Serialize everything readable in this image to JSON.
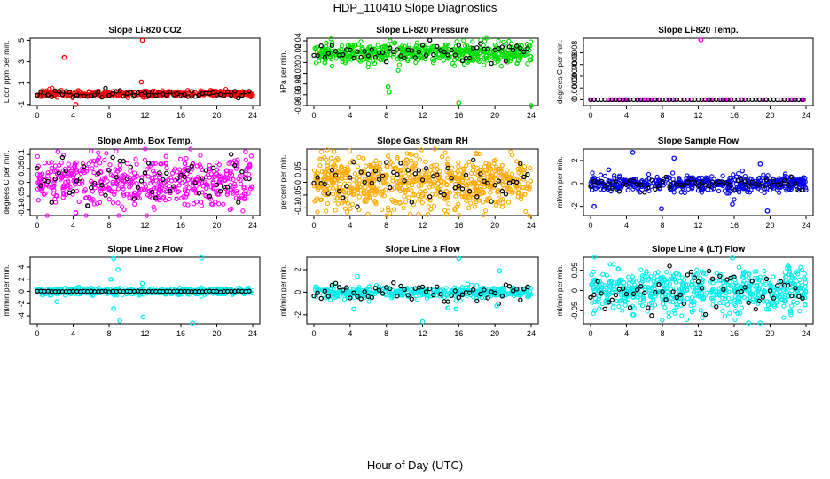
{
  "page": {
    "title": "HDP_110410  Slope Diagnostics",
    "xlabel": "Hour of Day (UTC)"
  },
  "chart_data": [
    {
      "type": "scatter",
      "title": "Slope Li-820 CO2",
      "ylabel": "Licor ppm per min.",
      "color": "#ff0000",
      "xlim": [
        0,
        24
      ],
      "xticks": [
        0,
        4,
        8,
        12,
        16,
        20,
        24
      ],
      "ylim": [
        -1.1,
        5.2
      ],
      "yticks": [
        -1,
        1,
        3,
        5
      ],
      "seed": 11,
      "noise": 0.15,
      "n": 420,
      "outliers": [
        {
          "x": 3.0,
          "y": 3.4
        },
        {
          "x": 11.7,
          "y": 5.0
        },
        {
          "x": 11.6,
          "y": 1.1
        },
        {
          "x": 4.3,
          "y": -1.0
        },
        {
          "x": 11.8,
          "y": -0.3
        }
      ],
      "black_noise": 0.18
    },
    {
      "type": "scatter",
      "title": "Slope Li-820 Pressure",
      "ylabel": "kPa per min.",
      "color": "#00dd00",
      "xlim": [
        0,
        24
      ],
      "xticks": [
        0,
        4,
        8,
        12,
        16,
        20,
        24
      ],
      "ylim": [
        -0.08,
        0.045
      ],
      "yticks": [
        -0.08,
        -0.06,
        -0.04,
        -0.02,
        0.0,
        0.02,
        0.04
      ],
      "seed": 23,
      "noise": 0.009,
      "n": 520,
      "center": 0.018,
      "outliers": [
        {
          "x": 8.4,
          "y": 0.04
        },
        {
          "x": 8.3,
          "y": -0.055
        },
        {
          "x": 16.0,
          "y": -0.075
        },
        {
          "x": 24.0,
          "y": -0.08
        },
        {
          "x": 8.2,
          "y": -0.045
        }
      ],
      "black_noise": 0.01
    },
    {
      "type": "scatter",
      "title": "Slope Li-820 Temp.",
      "ylabel": "degrees C per min.",
      "color": "#ff00ff",
      "xlim": [
        0,
        24
      ],
      "xticks": [
        0,
        4,
        8,
        12,
        16,
        20,
        24
      ],
      "ylim": [
        -0.0001,
        0.00105
      ],
      "yticks": [
        0.0,
        0.0002,
        0.0004,
        0.0006,
        0.0008
      ],
      "seed": 31,
      "noise": 0.0,
      "n": 60,
      "center": 0.0,
      "outliers": [
        {
          "x": 12.3,
          "y": 0.00102
        }
      ],
      "black_noise": 0.0
    },
    {
      "type": "scatter",
      "title": "Slope Amb. Box Temp.",
      "ylabel": "degrees C per min.",
      "color": "#ff00ff",
      "xlim": [
        0,
        24
      ],
      "xticks": [
        0,
        4,
        8,
        12,
        16,
        20,
        24
      ],
      "ylim": [
        -0.12,
        0.12
      ],
      "yticks": [
        -0.1,
        -0.05,
        0.0,
        0.05,
        0.1
      ],
      "seed": 47,
      "noise": 0.045,
      "n": 520,
      "center": 0.0,
      "outliers": [
        {
          "x": 2.3,
          "y": 0.11
        },
        {
          "x": 4.3,
          "y": -0.11
        },
        {
          "x": 23.2,
          "y": 0.11
        }
      ],
      "black_noise": 0.045
    },
    {
      "type": "scatter",
      "title": "Slope Gas Stream RH",
      "ylabel": "percent per min.",
      "color": "#ffaa00",
      "xlim": [
        0,
        24
      ],
      "xticks": [
        0,
        4,
        8,
        12,
        16,
        20,
        24
      ],
      "ylim": [
        -0.13,
        0.13
      ],
      "yticks": [
        -0.1,
        -0.05,
        0.0,
        0.05
      ],
      "seed": 59,
      "noise": 0.05,
      "n": 720,
      "center": 0.0,
      "outliers": [
        {
          "x": 2.2,
          "y": 0.12
        },
        {
          "x": 12.6,
          "y": -0.125
        }
      ],
      "black_noise": 0.045
    },
    {
      "type": "scatter",
      "title": "Slope Sample Flow",
      "ylabel": "ml/min per min.",
      "color": "#0000ee",
      "xlim": [
        0,
        24
      ],
      "xticks": [
        0,
        4,
        8,
        12,
        16,
        20,
        24
      ],
      "ylim": [
        -2.8,
        3.0
      ],
      "yticks": [
        -2,
        0,
        2
      ],
      "seed": 61,
      "noise": 0.35,
      "n": 520,
      "center": 0.0,
      "outliers": [
        {
          "x": 4.7,
          "y": 2.7
        },
        {
          "x": 9.3,
          "y": 2.2
        },
        {
          "x": 2.0,
          "y": 1.2
        },
        {
          "x": 0.4,
          "y": -2.0
        },
        {
          "x": 19.7,
          "y": -2.4
        },
        {
          "x": 15.8,
          "y": -1.8
        },
        {
          "x": 7.9,
          "y": -2.2
        },
        {
          "x": 18.9,
          "y": 1.7
        },
        {
          "x": 16.9,
          "y": 1.1
        }
      ],
      "black_noise": 0.3
    },
    {
      "type": "scatter",
      "title": "Slope Line 2 Flow",
      "ylabel": "ml/min per min.",
      "color": "#00eeee",
      "xlim": [
        0,
        24
      ],
      "xticks": [
        0,
        4,
        8,
        12,
        16,
        20,
        24
      ],
      "ylim": [
        -5.3,
        5.6
      ],
      "yticks": [
        -4,
        -2,
        0,
        2,
        4
      ],
      "seed": 71,
      "noise": 0.25,
      "n": 520,
      "center": 0.0,
      "outliers": [
        {
          "x": 8.5,
          "y": 5.4
        },
        {
          "x": 18.3,
          "y": 5.5
        },
        {
          "x": 9.2,
          "y": -4.8
        },
        {
          "x": 17.3,
          "y": -5.2
        },
        {
          "x": 11.8,
          "y": -4.2
        },
        {
          "x": 8.5,
          "y": -2.8
        },
        {
          "x": 9.0,
          "y": 3.6
        },
        {
          "x": 8.2,
          "y": 2.0
        },
        {
          "x": 2.2,
          "y": -1.7
        },
        {
          "x": 11.7,
          "y": 1.3
        }
      ],
      "black_noise": 0.03
    },
    {
      "type": "scatter",
      "title": "Slope Line 3 Flow",
      "ylabel": "ml/min per min.",
      "color": "#00eeee",
      "xlim": [
        0,
        24
      ],
      "xticks": [
        0,
        4,
        8,
        12,
        16,
        20,
        24
      ],
      "ylim": [
        -2.8,
        3.1
      ],
      "yticks": [
        -2,
        0,
        2
      ],
      "seed": 83,
      "noise": 0.25,
      "n": 380,
      "center": 0.0,
      "outliers": [
        {
          "x": 16.0,
          "y": 3.0
        },
        {
          "x": 12.0,
          "y": -2.6
        },
        {
          "x": 20.5,
          "y": 1.9
        },
        {
          "x": 4.8,
          "y": 1.4
        },
        {
          "x": 14.8,
          "y": -1.4
        },
        {
          "x": 15.7,
          "y": -1.5
        },
        {
          "x": 20.2,
          "y": -1.2
        },
        {
          "x": 4.4,
          "y": -1.5
        }
      ],
      "black_noise": 0.4
    },
    {
      "type": "scatter",
      "title": "Slope Line 4 (LT) Flow",
      "ylabel": "ml/min per min.",
      "color": "#00eeee",
      "xlim": [
        0,
        24
      ],
      "xticks": [
        0,
        4,
        8,
        12,
        16,
        20,
        24
      ],
      "ylim": [
        -0.082,
        0.082
      ],
      "yticks": [
        -0.05,
        0.0,
        0.05
      ],
      "seed": 97,
      "noise": 0.028,
      "n": 620,
      "center": 0.0,
      "outliers": [
        {
          "x": 15.8,
          "y": 0.08
        },
        {
          "x": 17.6,
          "y": -0.08
        },
        {
          "x": 18.9,
          "y": -0.08
        },
        {
          "x": 4.8,
          "y": -0.06
        }
      ],
      "black_noise": 0.03
    }
  ]
}
